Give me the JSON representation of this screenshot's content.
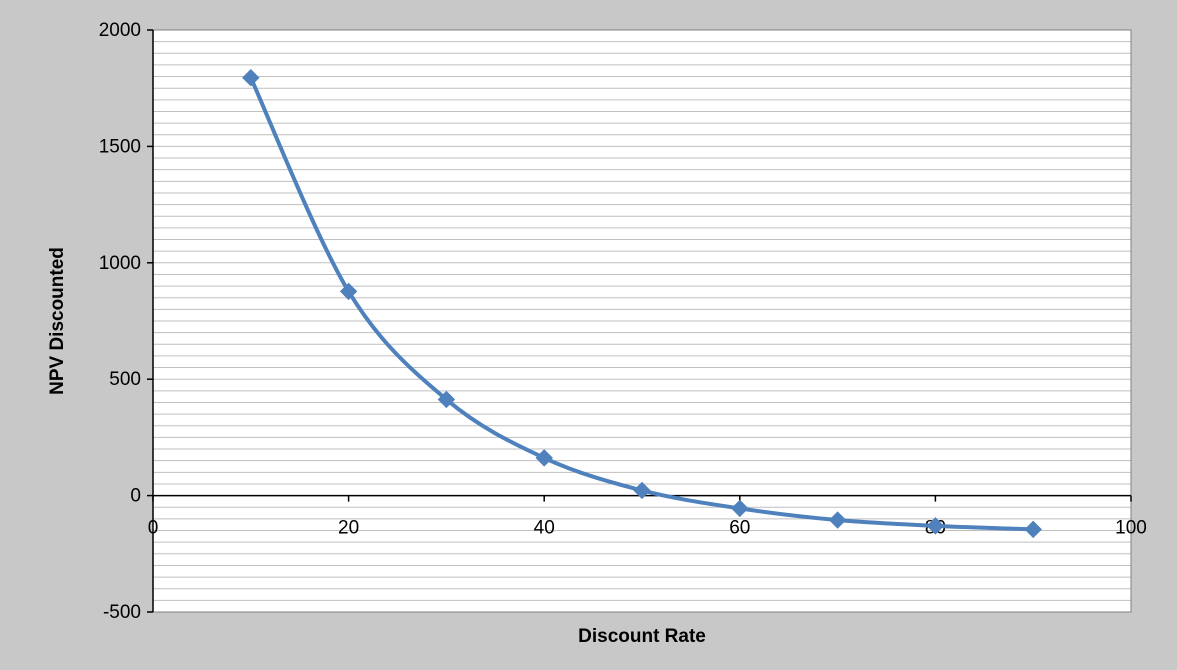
{
  "chart_data": {
    "type": "scatter",
    "smooth": true,
    "title": "",
    "xlabel": "Discount Rate",
    "ylabel": "NPV Discounted",
    "xlim": [
      0,
      100
    ],
    "ylim": [
      -500,
      2000
    ],
    "x_ticks": [
      0,
      20,
      40,
      60,
      80,
      100
    ],
    "y_ticks": [
      -500,
      0,
      500,
      1000,
      1500,
      2000
    ],
    "y_minor_step": 50,
    "grid": true,
    "legend": "none",
    "series": [
      {
        "x": [
          10,
          20,
          30,
          40,
          50,
          60,
          70,
          80,
          90
        ],
        "y": [
          1795,
          877,
          413,
          162,
          22,
          -55,
          -105,
          -130,
          -145
        ],
        "color": "#4f81bd",
        "marker": "diamond"
      }
    ]
  },
  "colors": {
    "outer_background": "#c8c8c8",
    "plot_background": "#ffffff",
    "gridline": "#bfbfbf",
    "axis": "#000000",
    "series": "#4f81bd"
  }
}
